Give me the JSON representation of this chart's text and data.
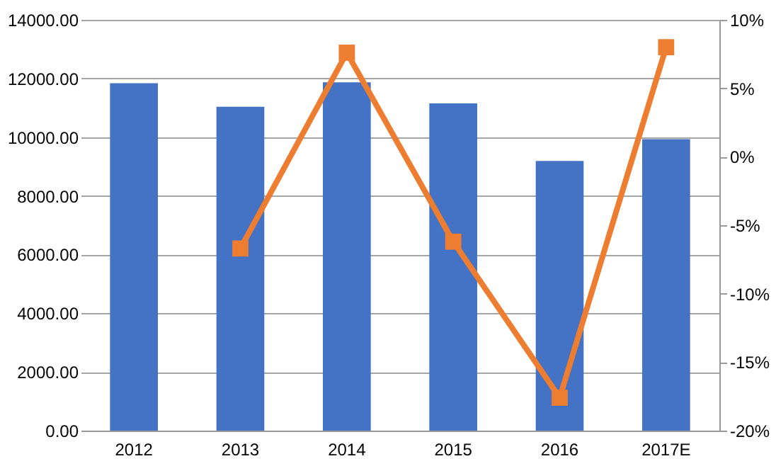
{
  "chart_data": {
    "type": "bar",
    "categories": [
      "2012",
      "2013",
      "2014",
      "2015",
      "2016",
      "2017E"
    ],
    "series": [
      {
        "color": "#4472c4",
        "values": [
          11840,
          11040,
          11870,
          11150,
          9190,
          9930
        ]
      },
      {
        "type": "line",
        "axis": "y2",
        "color": "#ed7d31",
        "marker": "square",
        "values": [
          null,
          -6.7,
          7.6,
          -6.2,
          -17.6,
          8.0
        ]
      }
    ],
    "ylim": [
      0,
      14000
    ],
    "yticks": [
      {
        "value": 0,
        "label": "0.00"
      },
      {
        "value": 2000,
        "label": "2000.00"
      },
      {
        "value": 4000,
        "label": "4000.00"
      },
      {
        "value": 6000,
        "label": "6000.00"
      },
      {
        "value": 8000,
        "label": "8000.00"
      },
      {
        "value": 10000,
        "label": "10000.00"
      },
      {
        "value": 12000,
        "label": "12000.00"
      },
      {
        "value": 14000,
        "label": "14000.00"
      }
    ],
    "y2lim": [
      -20,
      10
    ],
    "y2ticks": [
      {
        "value": -20,
        "label": "-20%"
      },
      {
        "value": -15,
        "label": "-15%"
      },
      {
        "value": -10,
        "label": "-10%"
      },
      {
        "value": -5,
        "label": "-5%"
      },
      {
        "value": 0,
        "label": "0%"
      },
      {
        "value": 5,
        "label": "5%"
      },
      {
        "value": 10,
        "label": "10%"
      }
    ],
    "grid": "y"
  }
}
